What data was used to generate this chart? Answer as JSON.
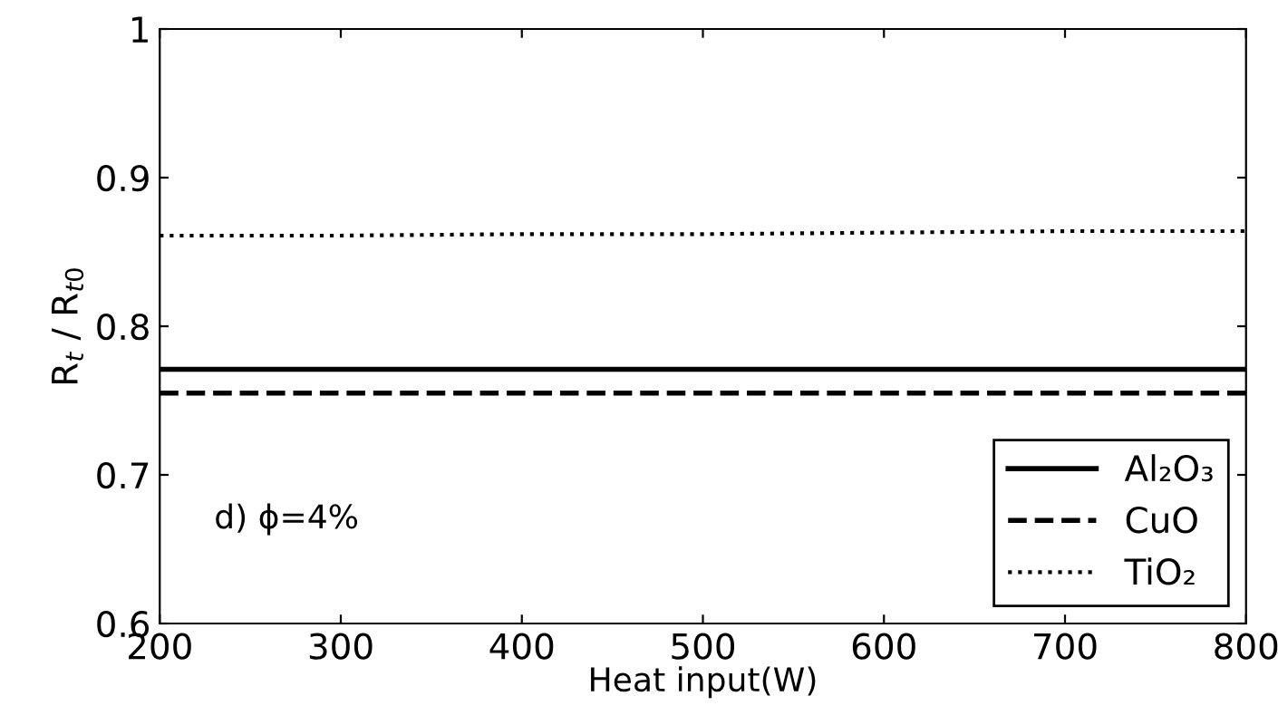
{
  "chart_data": {
    "type": "line",
    "xlabel": "Heat input(W)",
    "ylabel": "R$_{t}$ / R$_{t0}$",
    "x": [
      200,
      300,
      400,
      500,
      600,
      700,
      800
    ],
    "series": [
      {
        "name": "Al₂O₃",
        "color": "#000000",
        "line_style": "solid",
        "values": [
          0.771,
          0.771,
          0.771,
          0.771,
          0.771,
          0.771,
          0.771
        ]
      },
      {
        "name": "CuO",
        "color": "#000000",
        "line_style": "dashed",
        "values": [
          0.755,
          0.755,
          0.755,
          0.755,
          0.755,
          0.755,
          0.755
        ]
      },
      {
        "name": "TiO₂",
        "color": "#000000",
        "line_style": "dotted",
        "values": [
          0.861,
          0.861,
          0.862,
          0.862,
          0.863,
          0.864,
          0.864
        ]
      }
    ],
    "xlim": [
      200,
      800
    ],
    "ylim": [
      0.6,
      1
    ],
    "xticks": [
      200,
      300,
      400,
      500,
      600,
      700,
      800
    ],
    "yticks": [
      0.6,
      0.7,
      0.8,
      0.9,
      {
        "value": 1,
        "label": "1"
      }
    ],
    "annotations": [
      {
        "text": "d) ϕ=4%"
      }
    ],
    "grid": false,
    "legend": "lower right",
    "marker": "none"
  }
}
